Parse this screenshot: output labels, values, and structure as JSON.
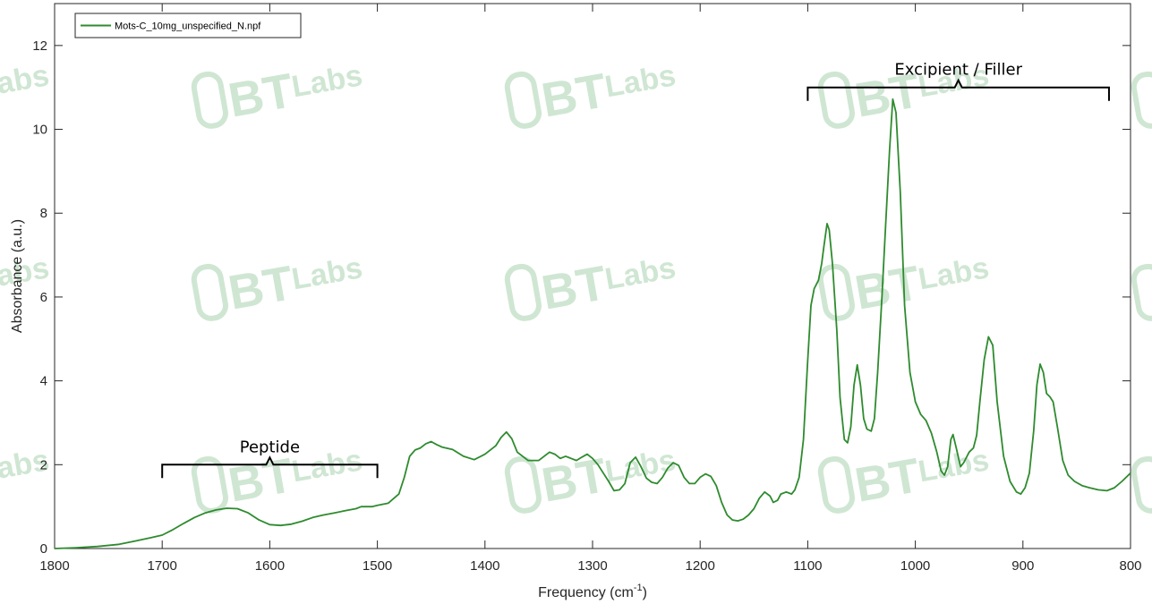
{
  "colors": {
    "series": "#2e8b2e",
    "axis": "#262626",
    "watermark": "#cfe6d3"
  },
  "watermark": {
    "text_main": "BT",
    "text_sub": "Labs"
  },
  "legend": {
    "entries": [
      "Mots-C_10mg_unspecified_N.npf"
    ],
    "placement": "top-left"
  },
  "annotations": [
    {
      "text": "Peptide",
      "x_from": 1700,
      "x_to": 1500,
      "y": 2.0
    },
    {
      "text": "Excipient / Filler",
      "x_from": 1100,
      "x_to": 820,
      "y": 11.0
    }
  ],
  "chart_data": {
    "type": "line",
    "xlabel_main": "Frequency (cm",
    "xlabel_sup": "-1",
    "xlabel_end": ")",
    "ylabel": "Absorbance (a.u.)",
    "xlim": [
      1800,
      800
    ],
    "ylim": [
      0,
      13
    ],
    "x_reversed": true,
    "xticks": [
      1800,
      1700,
      1600,
      1500,
      1400,
      1300,
      1200,
      1100,
      1000,
      900,
      800
    ],
    "yticks": [
      0,
      2,
      4,
      6,
      8,
      10,
      12
    ],
    "grid": false,
    "series": [
      {
        "name": "Mots-C_10mg_unspecified_N.npf",
        "points": [
          [
            1800,
            0.0
          ],
          [
            1780,
            0.02
          ],
          [
            1760,
            0.05
          ],
          [
            1740,
            0.1
          ],
          [
            1725,
            0.18
          ],
          [
            1710,
            0.26
          ],
          [
            1700,
            0.32
          ],
          [
            1690,
            0.45
          ],
          [
            1680,
            0.6
          ],
          [
            1670,
            0.74
          ],
          [
            1660,
            0.85
          ],
          [
            1650,
            0.92
          ],
          [
            1640,
            0.96
          ],
          [
            1630,
            0.95
          ],
          [
            1620,
            0.85
          ],
          [
            1610,
            0.68
          ],
          [
            1600,
            0.57
          ],
          [
            1590,
            0.55
          ],
          [
            1580,
            0.58
          ],
          [
            1570,
            0.65
          ],
          [
            1560,
            0.74
          ],
          [
            1550,
            0.8
          ],
          [
            1540,
            0.85
          ],
          [
            1530,
            0.9
          ],
          [
            1520,
            0.95
          ],
          [
            1515,
            1.0
          ],
          [
            1505,
            1.0
          ],
          [
            1500,
            1.03
          ],
          [
            1490,
            1.08
          ],
          [
            1480,
            1.3
          ],
          [
            1475,
            1.7
          ],
          [
            1470,
            2.2
          ],
          [
            1465,
            2.35
          ],
          [
            1460,
            2.4
          ],
          [
            1455,
            2.5
          ],
          [
            1450,
            2.55
          ],
          [
            1445,
            2.48
          ],
          [
            1440,
            2.42
          ],
          [
            1430,
            2.36
          ],
          [
            1420,
            2.2
          ],
          [
            1410,
            2.12
          ],
          [
            1400,
            2.25
          ],
          [
            1390,
            2.45
          ],
          [
            1385,
            2.65
          ],
          [
            1380,
            2.78
          ],
          [
            1375,
            2.62
          ],
          [
            1370,
            2.3
          ],
          [
            1360,
            2.1
          ],
          [
            1350,
            2.1
          ],
          [
            1345,
            2.2
          ],
          [
            1340,
            2.3
          ],
          [
            1335,
            2.25
          ],
          [
            1330,
            2.15
          ],
          [
            1325,
            2.2
          ],
          [
            1320,
            2.15
          ],
          [
            1315,
            2.1
          ],
          [
            1310,
            2.18
          ],
          [
            1305,
            2.25
          ],
          [
            1300,
            2.15
          ],
          [
            1295,
            2.0
          ],
          [
            1290,
            1.8
          ],
          [
            1285,
            1.6
          ],
          [
            1280,
            1.38
          ],
          [
            1275,
            1.4
          ],
          [
            1270,
            1.55
          ],
          [
            1265,
            2.05
          ],
          [
            1260,
            2.18
          ],
          [
            1255,
            1.95
          ],
          [
            1250,
            1.68
          ],
          [
            1245,
            1.58
          ],
          [
            1240,
            1.55
          ],
          [
            1235,
            1.7
          ],
          [
            1230,
            1.92
          ],
          [
            1225,
            2.05
          ],
          [
            1220,
            1.98
          ],
          [
            1215,
            1.7
          ],
          [
            1210,
            1.55
          ],
          [
            1205,
            1.55
          ],
          [
            1200,
            1.7
          ],
          [
            1195,
            1.78
          ],
          [
            1190,
            1.72
          ],
          [
            1185,
            1.5
          ],
          [
            1180,
            1.1
          ],
          [
            1175,
            0.8
          ],
          [
            1170,
            0.68
          ],
          [
            1165,
            0.66
          ],
          [
            1160,
            0.7
          ],
          [
            1155,
            0.8
          ],
          [
            1150,
            0.95
          ],
          [
            1145,
            1.2
          ],
          [
            1140,
            1.35
          ],
          [
            1135,
            1.25
          ],
          [
            1132,
            1.1
          ],
          [
            1128,
            1.15
          ],
          [
            1125,
            1.3
          ],
          [
            1120,
            1.35
          ],
          [
            1115,
            1.3
          ],
          [
            1112,
            1.4
          ],
          [
            1108,
            1.7
          ],
          [
            1104,
            2.6
          ],
          [
            1100,
            4.5
          ],
          [
            1097,
            5.8
          ],
          [
            1094,
            6.2
          ],
          [
            1090,
            6.4
          ],
          [
            1087,
            6.8
          ],
          [
            1085,
            7.2
          ],
          [
            1082,
            7.75
          ],
          [
            1080,
            7.6
          ],
          [
            1077,
            6.8
          ],
          [
            1073,
            5.2
          ],
          [
            1070,
            3.6
          ],
          [
            1066,
            2.6
          ],
          [
            1063,
            2.52
          ],
          [
            1060,
            2.9
          ],
          [
            1057,
            3.9
          ],
          [
            1054,
            4.38
          ],
          [
            1051,
            3.9
          ],
          [
            1048,
            3.1
          ],
          [
            1045,
            2.85
          ],
          [
            1041,
            2.8
          ],
          [
            1038,
            3.1
          ],
          [
            1035,
            4.2
          ],
          [
            1031,
            6.0
          ],
          [
            1028,
            7.5
          ],
          [
            1024,
            9.5
          ],
          [
            1021,
            10.72
          ],
          [
            1018,
            10.4
          ],
          [
            1014,
            8.5
          ],
          [
            1010,
            5.8
          ],
          [
            1005,
            4.2
          ],
          [
            1000,
            3.5
          ],
          [
            995,
            3.2
          ],
          [
            990,
            3.05
          ],
          [
            985,
            2.75
          ],
          [
            980,
            2.3
          ],
          [
            976,
            1.85
          ],
          [
            973,
            1.75
          ],
          [
            970,
            1.95
          ],
          [
            967,
            2.6
          ],
          [
            965,
            2.72
          ],
          [
            962,
            2.4
          ],
          [
            958,
            1.95
          ],
          [
            955,
            2.05
          ],
          [
            950,
            2.3
          ],
          [
            946,
            2.4
          ],
          [
            943,
            2.7
          ],
          [
            940,
            3.5
          ],
          [
            936,
            4.5
          ],
          [
            932,
            5.05
          ],
          [
            928,
            4.85
          ],
          [
            924,
            3.5
          ],
          [
            918,
            2.2
          ],
          [
            912,
            1.6
          ],
          [
            906,
            1.35
          ],
          [
            902,
            1.3
          ],
          [
            898,
            1.45
          ],
          [
            894,
            1.8
          ],
          [
            890,
            2.8
          ],
          [
            887,
            3.9
          ],
          [
            884,
            4.4
          ],
          [
            881,
            4.2
          ],
          [
            878,
            3.7
          ],
          [
            875,
            3.62
          ],
          [
            872,
            3.5
          ],
          [
            868,
            2.9
          ],
          [
            863,
            2.1
          ],
          [
            858,
            1.75
          ],
          [
            852,
            1.6
          ],
          [
            845,
            1.5
          ],
          [
            838,
            1.45
          ],
          [
            830,
            1.4
          ],
          [
            822,
            1.38
          ],
          [
            815,
            1.45
          ],
          [
            808,
            1.6
          ],
          [
            800,
            1.8
          ]
        ]
      }
    ]
  }
}
